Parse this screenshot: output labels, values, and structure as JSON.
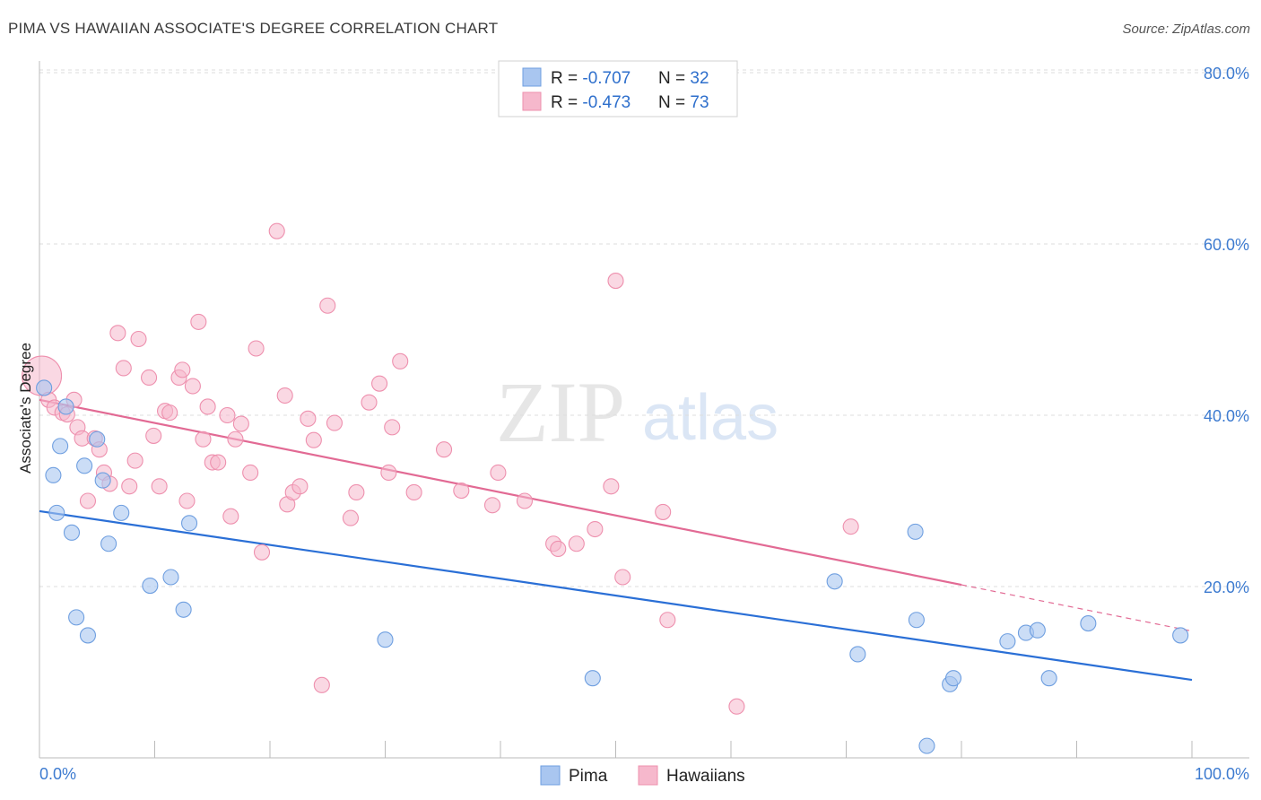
{
  "title": "PIMA VS HAWAIIAN ASSOCIATE'S DEGREE CORRELATION CHART",
  "source": "Source: ZipAtlas.com",
  "watermark": {
    "zip": "ZIP",
    "atlas": "atlas"
  },
  "colors": {
    "pima_fill": "#a9c6f0",
    "pima_stroke": "#6f9fe0",
    "pima_line": "#2a6fd6",
    "haw_fill": "#f6b8cc",
    "haw_stroke": "#ee90ae",
    "haw_line": "#e26a94",
    "tick_text": "#3d7bd0",
    "grid": "#dddddd"
  },
  "legend": {
    "rows": [
      {
        "r_label": "R = ",
        "r_value": "-0.707",
        "n_label": "N = ",
        "n_value": "32"
      },
      {
        "r_label": "R = ",
        "r_value": "-0.473",
        "n_label": "N = ",
        "n_value": "73"
      }
    ]
  },
  "chart_data": {
    "type": "scatter",
    "title": "PIMA VS HAWAIIAN ASSOCIATE'S DEGREE CORRELATION CHART",
    "xlabel": "",
    "ylabel": "Associate's Degree",
    "xlim": [
      0,
      100
    ],
    "ylim": [
      0,
      82
    ],
    "x_tick_labels": [
      "0.0%",
      "100.0%"
    ],
    "y_ticks": [
      20,
      40,
      60,
      80
    ],
    "y_tick_labels": [
      "20.0%",
      "40.0%",
      "60.0%",
      "80.0%"
    ],
    "grid": true,
    "legend_position": "top-center",
    "series": [
      {
        "name": "Pima",
        "r": -0.707,
        "n": 32,
        "trend": {
          "x": [
            0,
            100
          ],
          "y": [
            28.8,
            9.1
          ]
        },
        "points": [
          [
            0.4,
            43.2
          ],
          [
            1.2,
            33.0
          ],
          [
            1.5,
            28.6
          ],
          [
            1.8,
            36.4
          ],
          [
            2.3,
            41.0
          ],
          [
            2.8,
            26.3
          ],
          [
            3.2,
            16.4
          ],
          [
            3.9,
            34.1
          ],
          [
            4.2,
            14.3
          ],
          [
            5.0,
            37.2
          ],
          [
            5.5,
            32.4
          ],
          [
            6.0,
            25.0
          ],
          [
            7.1,
            28.6
          ],
          [
            9.6,
            20.1
          ],
          [
            11.4,
            21.1
          ],
          [
            12.5,
            17.3
          ],
          [
            13.0,
            27.4
          ],
          [
            30.0,
            13.8
          ],
          [
            48.0,
            9.3
          ],
          [
            69.0,
            20.6
          ],
          [
            71.0,
            12.1
          ],
          [
            76.0,
            26.4
          ],
          [
            76.1,
            16.1
          ],
          [
            79.0,
            8.6
          ],
          [
            79.3,
            9.3
          ],
          [
            77.0,
            1.4
          ],
          [
            84.0,
            13.6
          ],
          [
            85.6,
            14.6
          ],
          [
            86.6,
            14.9
          ],
          [
            87.6,
            9.3
          ],
          [
            91.0,
            15.7
          ],
          [
            99.0,
            14.3
          ]
        ]
      },
      {
        "name": "Hawaiians",
        "r": -0.473,
        "n": 73,
        "trend": {
          "x": [
            0,
            80
          ],
          "y": [
            41.8,
            20.2
          ]
        },
        "trend_extension": {
          "x": [
            80,
            100
          ],
          "y": [
            20.2,
            14.8
          ]
        },
        "points": [
          [
            0.2,
            44.6
          ],
          [
            0.8,
            41.8
          ],
          [
            1.3,
            40.9
          ],
          [
            2.0,
            40.3
          ],
          [
            2.4,
            40.1
          ],
          [
            3.0,
            41.8
          ],
          [
            3.3,
            38.6
          ],
          [
            3.7,
            37.3
          ],
          [
            4.2,
            30.0
          ],
          [
            4.8,
            37.3
          ],
          [
            5.2,
            36.0
          ],
          [
            5.6,
            33.3
          ],
          [
            6.1,
            32.0
          ],
          [
            6.8,
            49.6
          ],
          [
            7.3,
            45.5
          ],
          [
            7.8,
            31.7
          ],
          [
            8.3,
            34.7
          ],
          [
            8.6,
            48.9
          ],
          [
            9.5,
            44.4
          ],
          [
            9.9,
            37.6
          ],
          [
            10.4,
            31.7
          ],
          [
            10.9,
            40.5
          ],
          [
            11.3,
            40.3
          ],
          [
            12.1,
            44.4
          ],
          [
            12.4,
            45.3
          ],
          [
            12.8,
            30.0
          ],
          [
            13.3,
            43.4
          ],
          [
            13.8,
            50.9
          ],
          [
            14.2,
            37.2
          ],
          [
            14.6,
            41.0
          ],
          [
            15.0,
            34.5
          ],
          [
            15.5,
            34.5
          ],
          [
            16.3,
            40.0
          ],
          [
            16.6,
            28.2
          ],
          [
            17.0,
            37.2
          ],
          [
            17.5,
            39.0
          ],
          [
            18.3,
            33.3
          ],
          [
            18.8,
            47.8
          ],
          [
            19.3,
            24.0
          ],
          [
            20.6,
            61.5
          ],
          [
            21.3,
            42.3
          ],
          [
            21.5,
            29.6
          ],
          [
            22.0,
            31.0
          ],
          [
            22.6,
            31.7
          ],
          [
            23.3,
            39.6
          ],
          [
            23.8,
            37.1
          ],
          [
            24.5,
            8.5
          ],
          [
            25.0,
            52.8
          ],
          [
            25.6,
            39.1
          ],
          [
            27.0,
            28.0
          ],
          [
            27.5,
            31.0
          ],
          [
            28.6,
            41.5
          ],
          [
            29.5,
            43.7
          ],
          [
            30.3,
            33.3
          ],
          [
            30.6,
            38.6
          ],
          [
            31.3,
            46.3
          ],
          [
            32.5,
            31.0
          ],
          [
            35.1,
            36.0
          ],
          [
            36.6,
            31.2
          ],
          [
            39.3,
            29.5
          ],
          [
            39.8,
            33.3
          ],
          [
            42.1,
            30.0
          ],
          [
            44.6,
            25.0
          ],
          [
            45.0,
            24.4
          ],
          [
            46.6,
            25.0
          ],
          [
            48.2,
            26.7
          ],
          [
            50.0,
            55.7
          ],
          [
            49.6,
            31.7
          ],
          [
            50.6,
            21.1
          ],
          [
            54.1,
            28.7
          ],
          [
            54.5,
            16.1
          ],
          [
            60.5,
            6.0
          ],
          [
            70.4,
            27.0
          ]
        ]
      }
    ]
  },
  "bottom_legend": {
    "items": [
      {
        "label": "Pima"
      },
      {
        "label": "Hawaiians"
      }
    ]
  }
}
